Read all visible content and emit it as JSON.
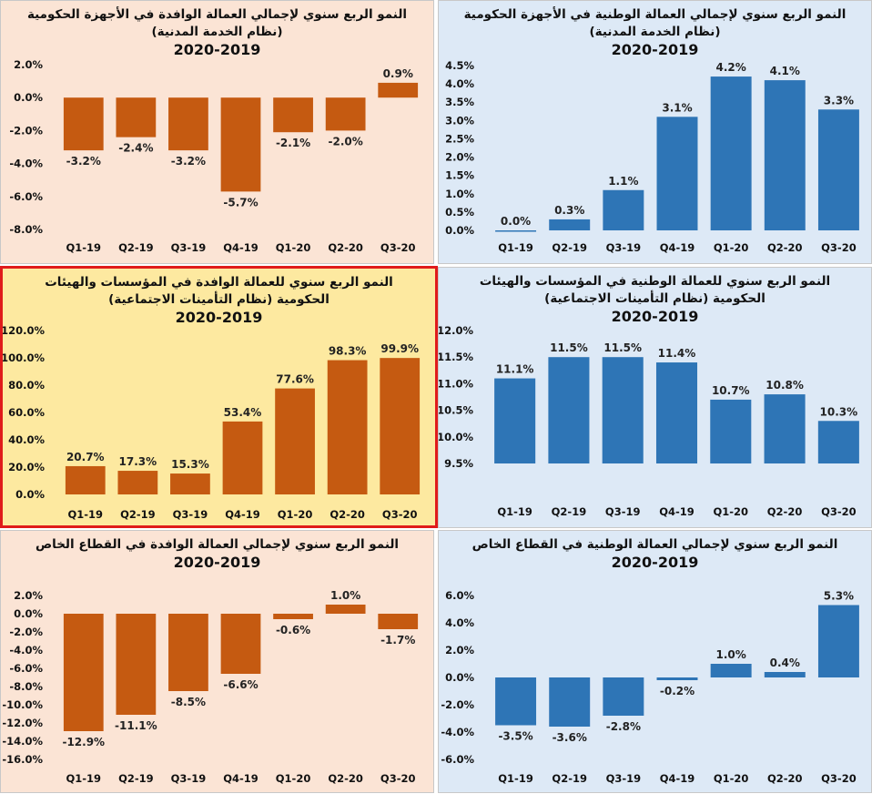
{
  "colors": {
    "orange_bar": "#c55a11",
    "blue_bar": "#2e75b6"
  },
  "chart_data": [
    {
      "type": "bar",
      "id": "c1",
      "title": "النمو الربع سنوي لإجمالي العمالة الوافدة في الأجهزة الحكومية (نظام الخدمة المدنية)",
      "title_years": "2020-2019",
      "categories": [
        "Q1-19",
        "Q2-19",
        "Q3-19",
        "Q4-19",
        "Q1-20",
        "Q2-20",
        "Q3-20"
      ],
      "values": [
        -3.2,
        -2.4,
        -3.2,
        -5.7,
        -2.1,
        -2.0,
        0.9
      ],
      "value_labels": [
        "-3.2%",
        "-2.4%",
        "-3.2%",
        "-5.7%",
        "-2.1%",
        "-2.0%",
        "0.9%"
      ],
      "ylim": [
        -8,
        2
      ],
      "ticks": [
        2,
        0,
        -2,
        -4,
        -6,
        -8
      ],
      "tick_labels": [
        "2.0%",
        "0.0%",
        "-2.0%",
        "-4.0%",
        "-6.0%",
        "-8.0%"
      ],
      "color": "#c55a11"
    },
    {
      "type": "bar",
      "id": "c2",
      "title": "النمو الربع سنوي لإجمالي العمالة الوطنية في الأجهزة الحكومية (نظام الخدمة المدنية)",
      "title_years": "2020-2019",
      "categories": [
        "Q1-19",
        "Q2-19",
        "Q3-19",
        "Q4-19",
        "Q1-20",
        "Q2-20",
        "Q3-20"
      ],
      "values": [
        0.0,
        0.3,
        1.1,
        3.1,
        4.2,
        4.1,
        3.3
      ],
      "value_labels": [
        "0.0%",
        "0.3%",
        "1.1%",
        "3.1%",
        "4.2%",
        "4.1%",
        "3.3%"
      ],
      "ylim": [
        0,
        4.5
      ],
      "ticks": [
        4.5,
        4.0,
        3.5,
        3.0,
        2.5,
        2.0,
        1.5,
        1.0,
        0.5,
        0.0
      ],
      "tick_labels": [
        "4.5%",
        "4.0%",
        "3.5%",
        "3.0%",
        "2.5%",
        "2.0%",
        "1.5%",
        "1.0%",
        "0.5%",
        "0.0%"
      ],
      "color": "#2e75b6"
    },
    {
      "type": "bar",
      "id": "c3",
      "title": "النمو الربع سنوي للعمالة الوافدة في المؤسسات والهيئات الحكومية (نظام التأمينات الاجتماعية)",
      "title_years": "2020-2019",
      "categories": [
        "Q1-19",
        "Q2-19",
        "Q3-19",
        "Q4-19",
        "Q1-20",
        "Q2-20",
        "Q3-20"
      ],
      "values": [
        20.7,
        17.3,
        15.3,
        53.4,
        77.6,
        98.3,
        99.9
      ],
      "value_labels": [
        "20.7%",
        "17.3%",
        "15.3%",
        "53.4%",
        "77.6%",
        "98.3%",
        "99.9%"
      ],
      "ylim": [
        0,
        120
      ],
      "ticks": [
        120,
        100,
        80,
        60,
        40,
        20,
        0
      ],
      "tick_labels": [
        "120.0%",
        "100.0%",
        "80.0%",
        "60.0%",
        "40.0%",
        "20.0%",
        "0.0%"
      ],
      "color": "#c55a11"
    },
    {
      "type": "bar",
      "id": "c4",
      "title": "النمو الربع سنوي للعمالة الوطنية في المؤسسات والهيئات الحكومية (نظام التأمينات الاجتماعية)",
      "title_years": "2020-2019",
      "categories": [
        "Q1-19",
        "Q2-19",
        "Q3-19",
        "Q4-19",
        "Q1-20",
        "Q2-20",
        "Q3-20"
      ],
      "values": [
        11.1,
        11.5,
        11.5,
        11.4,
        10.7,
        10.8,
        10.3
      ],
      "value_labels": [
        "11.1%",
        "11.5%",
        "11.5%",
        "11.4%",
        "10.7%",
        "10.8%",
        "10.3%"
      ],
      "ylim": [
        9.5,
        12.0
      ],
      "ticks": [
        12.0,
        11.5,
        11.0,
        10.5,
        10.0,
        9.5
      ],
      "tick_labels": [
        "12.0%",
        "11.5%",
        "11.0%",
        "10.5%",
        "10.0%",
        "9.5%"
      ],
      "color": "#2e75b6"
    },
    {
      "type": "bar",
      "id": "c5",
      "title": "النمو الربع سنوي لإجمالي العمالة الوافدة في القطاع الخاص",
      "title_years": "2020-2019",
      "categories": [
        "Q1-19",
        "Q2-19",
        "Q3-19",
        "Q4-19",
        "Q1-20",
        "Q2-20",
        "Q3-20"
      ],
      "values": [
        -12.9,
        -11.1,
        -8.5,
        -6.6,
        -0.6,
        1.0,
        -1.7
      ],
      "value_labels": [
        "-12.9%",
        "-11.1%",
        "-8.5%",
        "-6.6%",
        "-0.6%",
        "1.0%",
        "-1.7%"
      ],
      "ylim": [
        -16,
        2
      ],
      "ticks": [
        2,
        0,
        -2,
        -4,
        -6,
        -8,
        -10,
        -12,
        -14,
        -16
      ],
      "tick_labels": [
        "2.0%",
        "0.0%",
        "-2.0%",
        "-4.0%",
        "-6.0%",
        "-8.0%",
        "-10.0%",
        "-12.0%",
        "-14.0%",
        "-16.0%"
      ],
      "color": "#c55a11"
    },
    {
      "type": "bar",
      "id": "c6",
      "title": "النمو الربع سنوي لإجمالي العمالة الوطنية في القطاع الخاص",
      "title_years": "2020-2019",
      "categories": [
        "Q1-19",
        "Q2-19",
        "Q3-19",
        "Q4-19",
        "Q1-20",
        "Q2-20",
        "Q3-20"
      ],
      "values": [
        -3.5,
        -3.6,
        -2.8,
        -0.2,
        1.0,
        0.4,
        5.3
      ],
      "value_labels": [
        "-3.5%",
        "-3.6%",
        "-2.8%",
        "-0.2%",
        "1.0%",
        "0.4%",
        "5.3%"
      ],
      "ylim": [
        -6,
        6
      ],
      "ticks": [
        6,
        4,
        2,
        0,
        -2,
        -4,
        -6
      ],
      "tick_labels": [
        "6.0%",
        "4.0%",
        "2.0%",
        "0.0%",
        "-2.0%",
        "-4.0%",
        "-6.0%"
      ],
      "color": "#2e75b6"
    }
  ]
}
